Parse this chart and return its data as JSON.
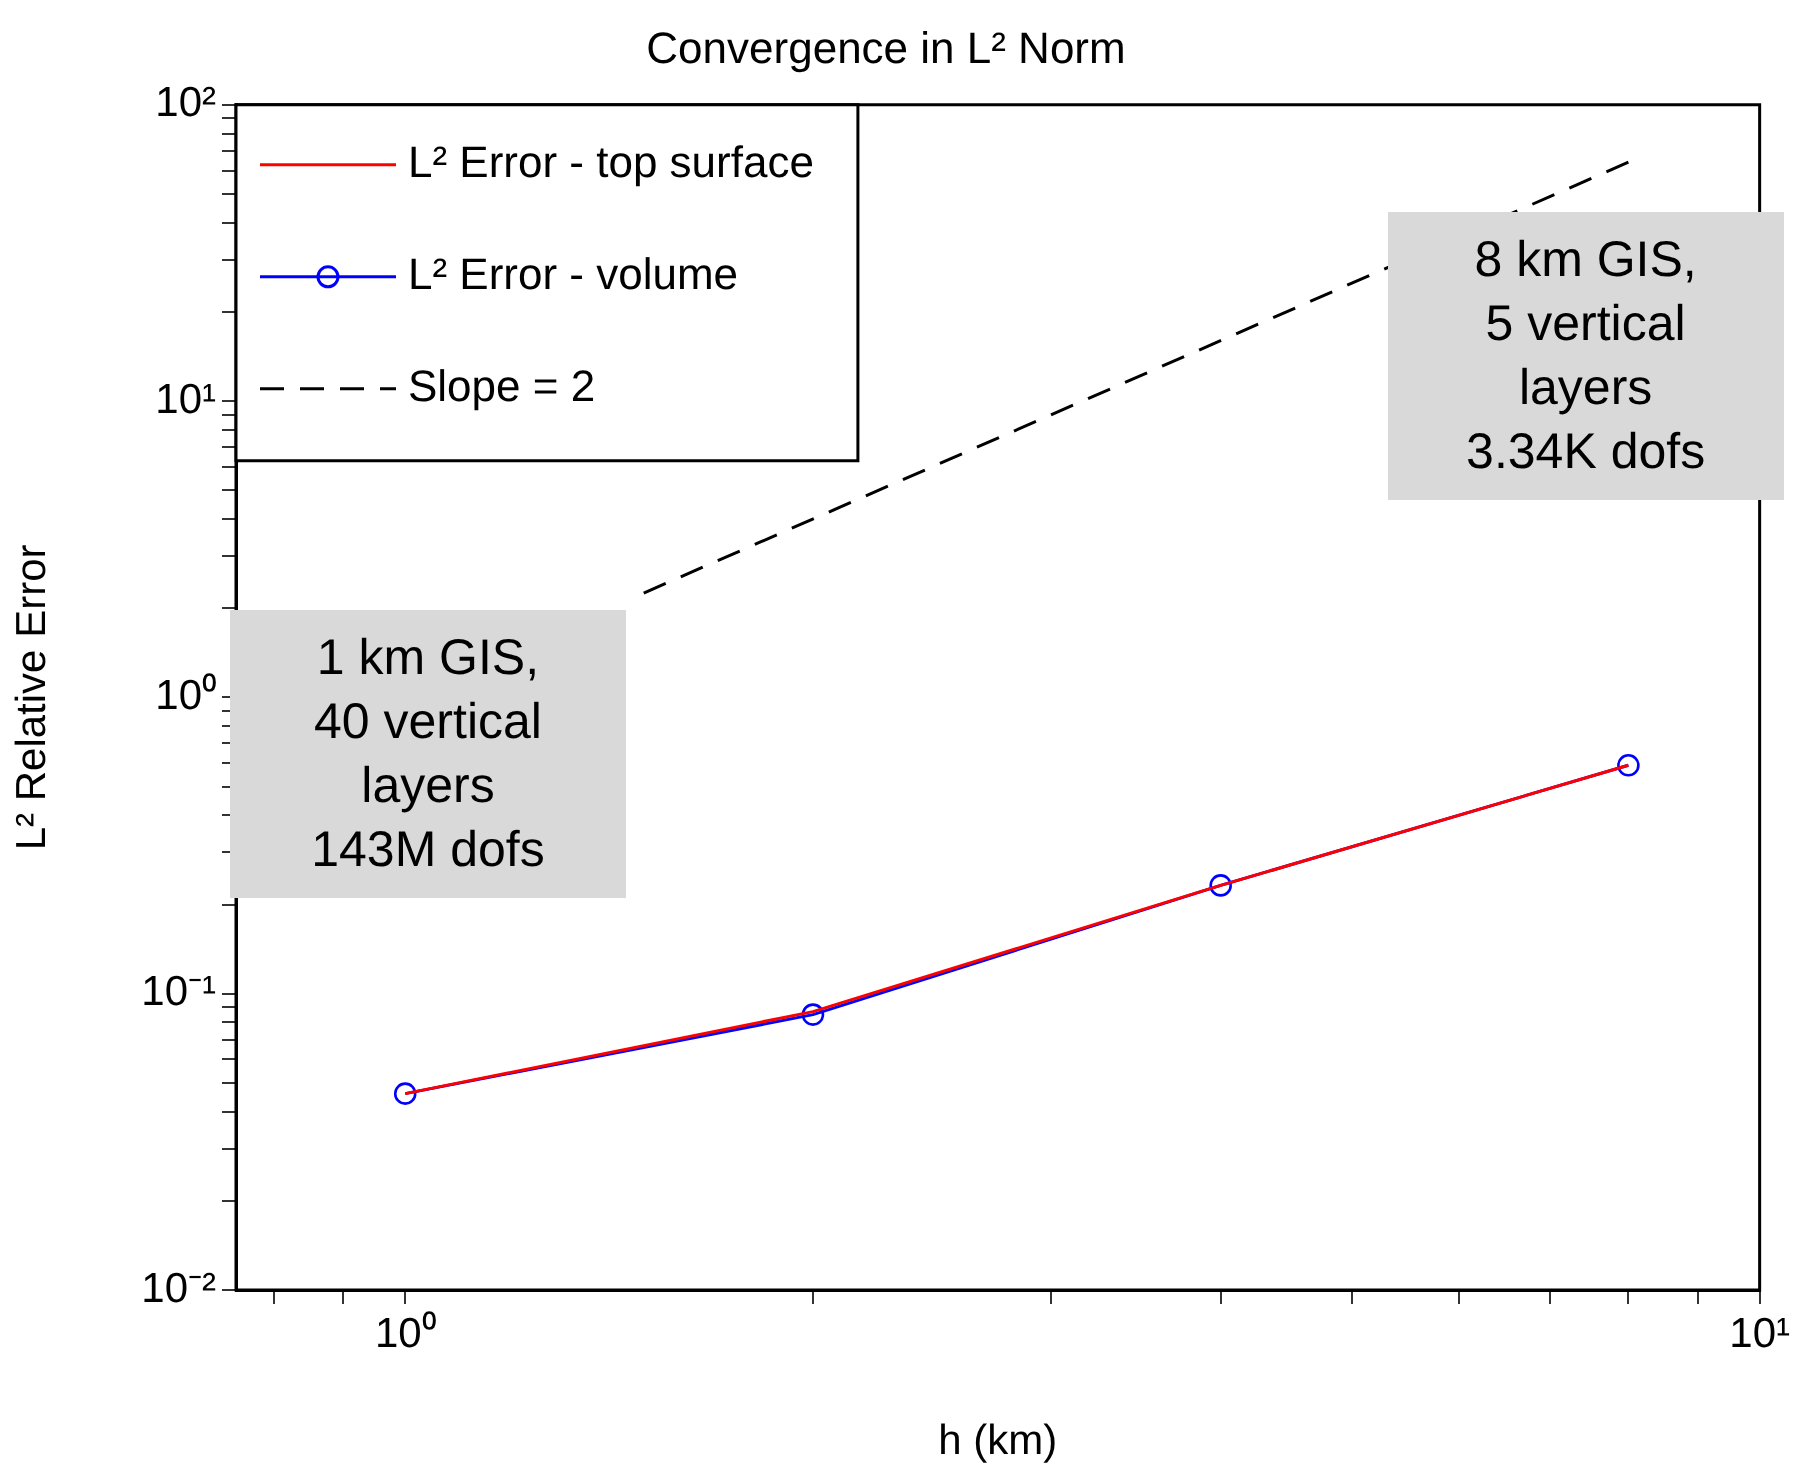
{
  "chart_data": {
    "type": "line",
    "title": "Convergence in L² Norm",
    "xlabel": "h (km)",
    "ylabel": "L² Relative Error",
    "x": [
      1,
      2,
      4,
      8
    ],
    "series": [
      {
        "name": "L² Error - top surface",
        "color": "#ff0000",
        "values": [
          0.046,
          0.087,
          0.232,
          0.59
        ],
        "marker": "none",
        "line_style": "solid"
      },
      {
        "name": "L² Error - volume",
        "color": "#0000ff",
        "values": [
          0.046,
          0.085,
          0.232,
          0.59
        ],
        "marker": "circle",
        "line_style": "solid"
      },
      {
        "name": "Slope = 2",
        "color": "#000000",
        "x": [
          1.5,
          8
        ],
        "values": [
          2.25,
          64
        ],
        "marker": "none",
        "line_style": "dashed"
      }
    ],
    "log": "xy",
    "xlim": [
      0.75,
      10
    ],
    "ylim": [
      0.01,
      100
    ],
    "xticks": [
      {
        "value": 0.8,
        "label": null
      },
      {
        "value": 0.9,
        "label": null
      },
      {
        "value": 1,
        "label": "10⁰"
      },
      {
        "value": 2,
        "label": null
      },
      {
        "value": 3,
        "label": null
      },
      {
        "value": 4,
        "label": null
      },
      {
        "value": 5,
        "label": null
      },
      {
        "value": 6,
        "label": null
      },
      {
        "value": 7,
        "label": null
      },
      {
        "value": 8,
        "label": null
      },
      {
        "value": 9,
        "label": null
      },
      {
        "value": 10,
        "label": "10¹"
      }
    ],
    "yticks": [
      {
        "value": 0.01,
        "label": "10⁻²"
      },
      {
        "value": 0.02,
        "label": null
      },
      {
        "value": 0.03,
        "label": null
      },
      {
        "value": 0.04,
        "label": null
      },
      {
        "value": 0.05,
        "label": null
      },
      {
        "value": 0.06,
        "label": null
      },
      {
        "value": 0.07,
        "label": null
      },
      {
        "value": 0.08,
        "label": null
      },
      {
        "value": 0.09,
        "label": null
      },
      {
        "value": 0.1,
        "label": "10⁻¹"
      },
      {
        "value": 0.2,
        "label": null
      },
      {
        "value": 0.3,
        "label": null
      },
      {
        "value": 0.4,
        "label": null
      },
      {
        "value": 0.5,
        "label": null
      },
      {
        "value": 0.6,
        "label": null
      },
      {
        "value": 0.7,
        "label": null
      },
      {
        "value": 0.8,
        "label": null
      },
      {
        "value": 0.9,
        "label": null
      },
      {
        "value": 1,
        "label": "10⁰"
      },
      {
        "value": 2,
        "label": null
      },
      {
        "value": 3,
        "label": null
      },
      {
        "value": 4,
        "label": null
      },
      {
        "value": 5,
        "label": null
      },
      {
        "value": 6,
        "label": null
      },
      {
        "value": 7,
        "label": null
      },
      {
        "value": 8,
        "label": null
      },
      {
        "value": 9,
        "label": null
      },
      {
        "value": 10,
        "label": "10¹"
      },
      {
        "value": 20,
        "label": null
      },
      {
        "value": 30,
        "label": null
      },
      {
        "value": 40,
        "label": null
      },
      {
        "value": 50,
        "label": null
      },
      {
        "value": 60,
        "label": null
      },
      {
        "value": 70,
        "label": null
      },
      {
        "value": 80,
        "label": null
      },
      {
        "value": 90,
        "label": null
      },
      {
        "value": 100,
        "label": "10²"
      }
    ],
    "grid": false,
    "legend": "top left",
    "annotations": [
      "1 km GIS,\n40 vertical\nlayers\n143M dofs",
      "8 km GIS,\n5 vertical\nlayers\n3.34K dofs"
    ]
  }
}
